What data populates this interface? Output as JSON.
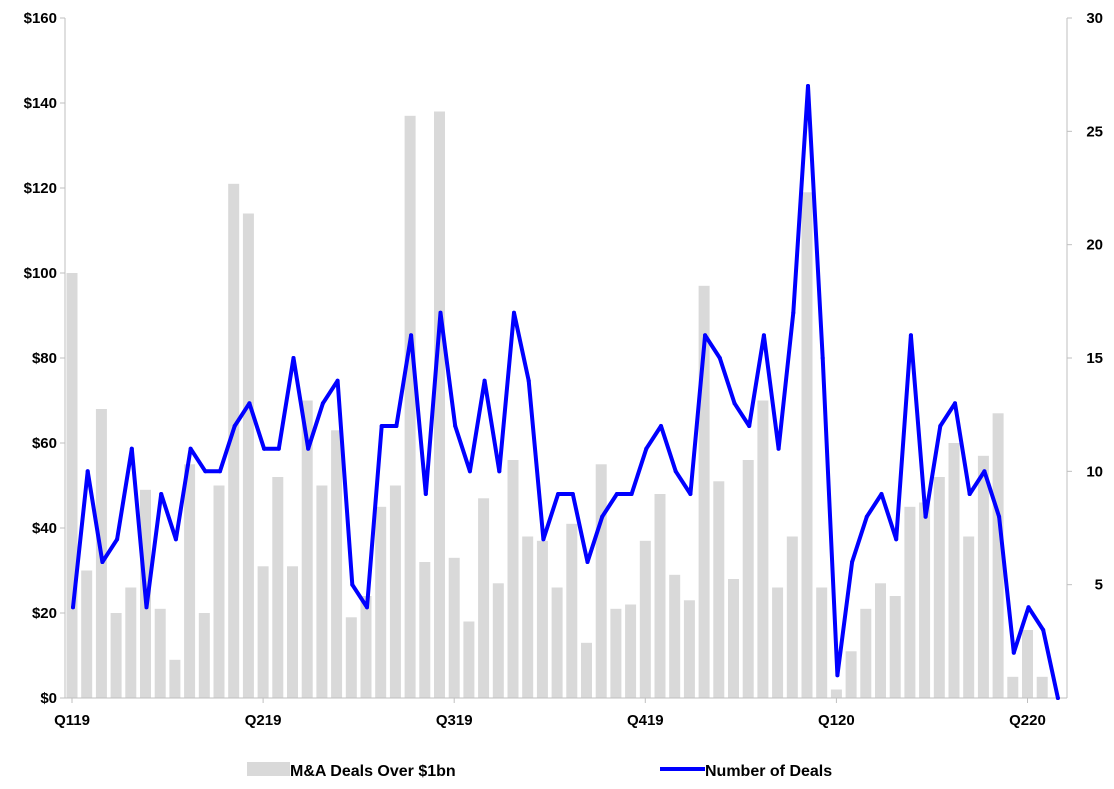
{
  "chart_data": {
    "type": "bar+line",
    "title": "",
    "xlabel": "",
    "ylabel": "",
    "x_tick_labels": [
      "Q119",
      "Q219",
      "Q319",
      "Q419",
      "Q120",
      "Q220"
    ],
    "x_tick_positions": [
      0,
      13,
      26,
      39,
      52,
      65
    ],
    "ylim_left": [
      0,
      160
    ],
    "ylim_right": [
      0,
      30
    ],
    "left_ticks": [
      0,
      20,
      40,
      60,
      80,
      100,
      120,
      140,
      160
    ],
    "left_tick_labels": [
      "$0",
      "$20",
      "$40",
      "$60",
      "$80",
      "$100",
      "$120",
      "$140",
      "$160"
    ],
    "right_ticks": [
      5,
      10,
      15,
      20,
      25,
      30
    ],
    "right_tick_labels": [
      "5",
      "10",
      "15",
      "20",
      "25",
      "30"
    ],
    "legend_position": "bottom",
    "series": [
      {
        "name": "M&A Deals Over $1bn",
        "type": "bar",
        "axis": "left",
        "color": "#d9d9d9",
        "values": [
          100,
          30,
          68,
          20,
          26,
          49,
          21,
          9,
          55,
          20,
          50,
          121,
          114,
          31,
          52,
          31,
          70,
          50,
          63,
          19,
          24,
          45,
          50,
          137,
          32,
          138,
          33,
          18,
          47,
          27,
          56,
          38,
          37,
          26,
          41,
          13,
          55,
          21,
          22,
          37,
          48,
          29,
          23,
          97,
          51,
          28,
          56,
          70,
          26,
          38,
          119,
          26,
          2,
          11,
          21,
          27,
          24,
          45,
          46,
          52,
          60,
          38,
          57,
          67,
          5,
          16,
          5
        ]
      },
      {
        "name": "Number of Deals",
        "type": "line",
        "axis": "right",
        "color": "#0000ff",
        "values": [
          4,
          10,
          6,
          7,
          11,
          4,
          9,
          7,
          11,
          10,
          10,
          12,
          13,
          11,
          11,
          15,
          11,
          13,
          14,
          5,
          4,
          12,
          12,
          16,
          9,
          17,
          12,
          10,
          14,
          10,
          17,
          14,
          7,
          9,
          9,
          6,
          8,
          9,
          9,
          11,
          12,
          10,
          9,
          16,
          15,
          13,
          12,
          16,
          11,
          17,
          27,
          15,
          1,
          6,
          8,
          9,
          7,
          16,
          8,
          12,
          13,
          9,
          10,
          8,
          2,
          4,
          3,
          0
        ]
      }
    ]
  },
  "colors": {
    "bar": "#d9d9d9",
    "line": "#0000ff",
    "axis": "#bfbfbf"
  }
}
